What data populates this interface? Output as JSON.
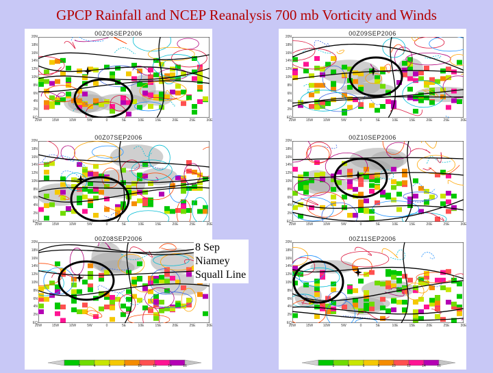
{
  "title": "GPCP Rainfall and NCEP Reanalysis 700 mb Vorticity and Winds",
  "annotation": {
    "lines": [
      "8 Sep",
      "Niamey",
      "Squall Line"
    ]
  },
  "axes": {
    "y_ticks": [
      "20N",
      "18N",
      "16N",
      "14N",
      "12N",
      "10N",
      "8N",
      "6N",
      "4N",
      "2N",
      "EQ"
    ],
    "x_ticks": [
      "20W",
      "15W",
      "10W",
      "5W",
      "0",
      "5E",
      "10E",
      "15E",
      "20E",
      "25E",
      "30E"
    ]
  },
  "panels": [
    {
      "id": "p1",
      "date": "00Z06SEP2006"
    },
    {
      "id": "p2",
      "date": "00Z07SEP2006"
    },
    {
      "id": "p3",
      "date": "00Z08SEP2006"
    },
    {
      "id": "p4",
      "date": "00Z09SEP2006"
    },
    {
      "id": "p5",
      "date": "00Z10SEP2006"
    },
    {
      "id": "p6",
      "date": "00Z11SEP2006"
    }
  ],
  "colorbar": {
    "labels": [
      "2",
      "4",
      "6",
      "8",
      "10",
      "12",
      "14",
      "16"
    ],
    "colors": [
      "#00c800",
      "#70dc00",
      "#c8e600",
      "#f5c800",
      "#f58c00",
      "#ff5050",
      "#ff1493",
      "#b400b4"
    ]
  },
  "colors": {
    "background": "#c8c8f6",
    "title": "#b30000",
    "circle": "#000000",
    "contour_warm": [
      "#ffa500",
      "#ff4500",
      "#dc143c",
      "#b0007b"
    ],
    "contour_cool": [
      "#00bcd4",
      "#1e90ff",
      "#4169e1"
    ],
    "streamline": "#000000"
  }
}
